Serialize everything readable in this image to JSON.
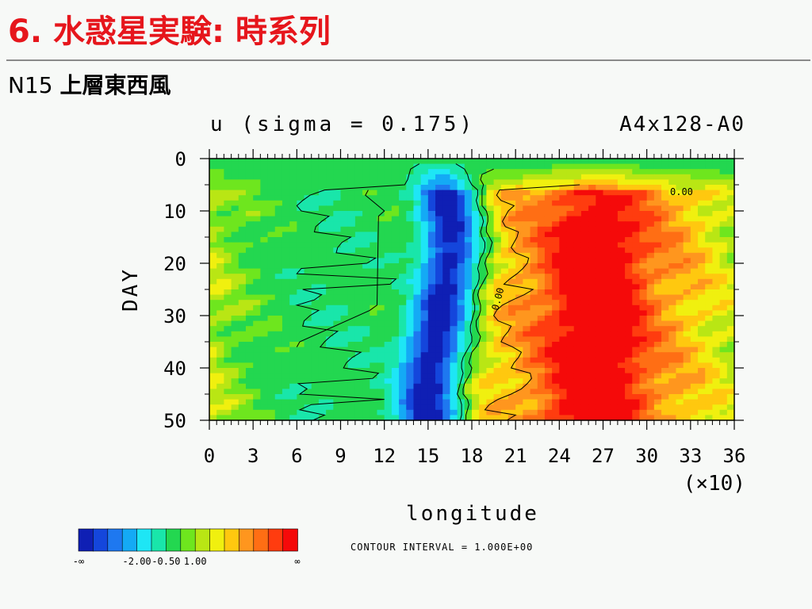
{
  "slide": {
    "title": "6. 水惑星実験: 時系列",
    "subtitle_prefix": "N15",
    "subtitle_main": "上層東西風"
  },
  "chart_data": {
    "type": "heatmap",
    "title": "u (sigma = 0.175)",
    "case_label": "A4x128-A0",
    "xlabel": "longitude",
    "x_multiplier_label": "(×10)",
    "ylabel": "DAY",
    "x_ticks": [
      "0",
      "3",
      "6",
      "9",
      "12",
      "15",
      "18",
      "21",
      "24",
      "27",
      "30",
      "33",
      "36"
    ],
    "y_ticks": [
      "0",
      "10",
      "20",
      "30",
      "40",
      "50"
    ],
    "xlim": [
      0,
      36
    ],
    "ylim": [
      0,
      50
    ],
    "y_inverted": true,
    "grid": false,
    "contour_interval_text": "CONTOUR INTERVAL = 1.000E+00",
    "contour_labels": [
      "0.00",
      "0.00"
    ],
    "colorbar": {
      "tick_labels": [
        "-∞",
        "-2.00",
        "-0.50",
        "1.00",
        "∞"
      ],
      "colors": [
        "#0f1fb4",
        "#1446dc",
        "#1e78f0",
        "#14aaf5",
        "#1ee6f5",
        "#19e6aa",
        "#23d750",
        "#6ee61e",
        "#b9e614",
        "#f0f00f",
        "#ffc80f",
        "#ff961e",
        "#ff6e14",
        "#ff3c0f",
        "#f50a0a"
      ]
    },
    "data_description": "Time-longitude section of zonal wind u. A strong negative (blue) band centered near longitude 150-170 persists over all 50 days; positive (orange/red) regions elsewhere, strongest near longitude 240-280."
  }
}
